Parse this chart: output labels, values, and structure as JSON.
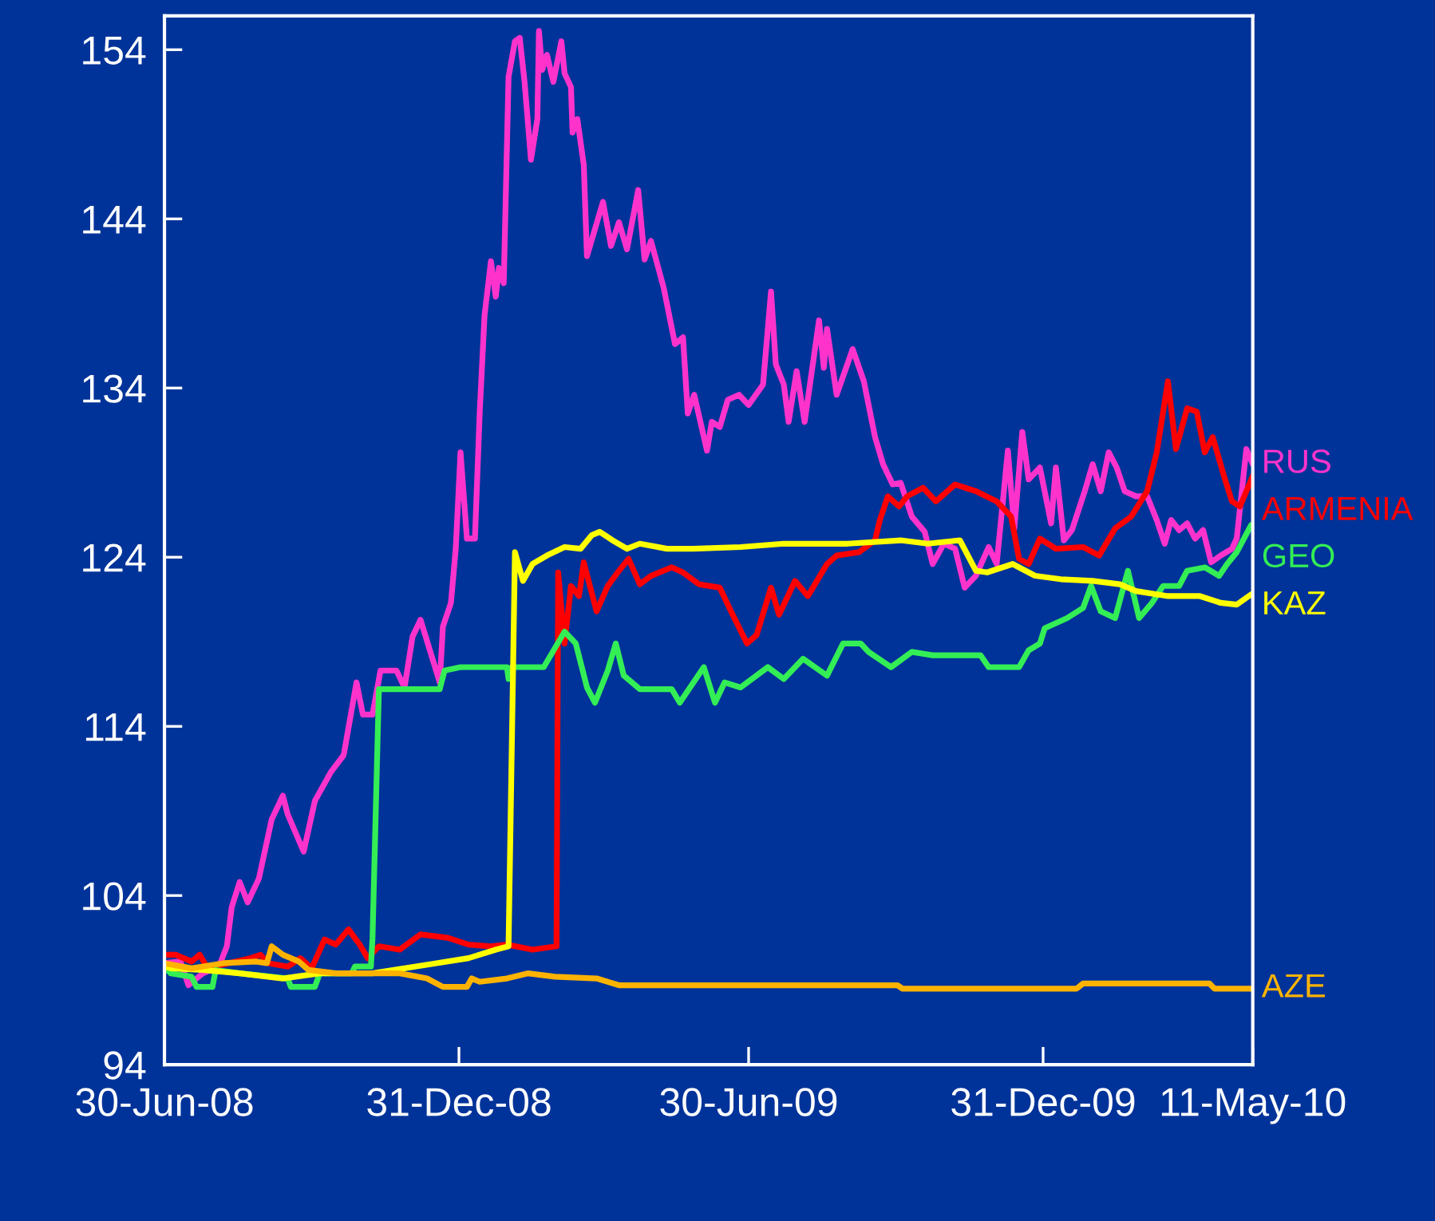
{
  "chart_data": {
    "type": "line",
    "xlim": [
      "2008-06-30",
      "2010-05-11"
    ],
    "xticks": [
      {
        "value": "2008-06-30",
        "label": "30-Jun-08"
      },
      {
        "value": "2008-12-31",
        "label": "31-Dec-08"
      },
      {
        "value": "2009-06-30",
        "label": "30-Jun-09"
      },
      {
        "value": "2009-12-31",
        "label": "31-Dec-09"
      },
      {
        "value": "2010-05-11",
        "label": "11-May-10"
      }
    ],
    "ylim": [
      94,
      156
    ],
    "yticks": [
      94,
      104,
      114,
      124,
      134,
      144,
      154
    ],
    "grid": false,
    "legend": false,
    "marker": "none",
    "line_style": "solid",
    "series": [
      {
        "name": "RUS",
        "color": "#ff33cc",
        "x": [
          "2008-06-30",
          "2008-07-10",
          "2008-07-15",
          "2008-07-24",
          "2008-08-03",
          "2008-08-08",
          "2008-08-11",
          "2008-08-16",
          "2008-08-21",
          "2008-08-28",
          "2008-09-05",
          "2008-09-12",
          "2008-09-15",
          "2008-09-25",
          "2008-10-02",
          "2008-10-12",
          "2008-10-20",
          "2008-10-28",
          "2008-11-01",
          "2008-11-07",
          "2008-11-12",
          "2008-11-22",
          "2008-11-27",
          "2008-12-02",
          "2008-12-07",
          "2008-12-19",
          "2008-12-21",
          "2008-12-26",
          "2008-12-29",
          "2009-01-01",
          "2009-01-05",
          "2009-01-10",
          "2009-01-13",
          "2009-01-16",
          "2009-01-20",
          "2009-01-23",
          "2009-01-25",
          "2009-01-28",
          "2009-01-31",
          "2009-02-04",
          "2009-02-07",
          "2009-02-10",
          "2009-02-14",
          "2009-02-18",
          "2009-02-19",
          "2009-02-21",
          "2009-02-24",
          "2009-02-28",
          "2009-03-05",
          "2009-03-07",
          "2009-03-11",
          "2009-03-12",
          "2009-03-15",
          "2009-03-19",
          "2009-03-21",
          "2009-03-26",
          "2009-03-31",
          "2009-04-05",
          "2009-04-10",
          "2009-04-15",
          "2009-04-22",
          "2009-04-26",
          "2009-04-30",
          "2009-05-08",
          "2009-05-15",
          "2009-05-20",
          "2009-05-23",
          "2009-05-27",
          "2009-06-04",
          "2009-06-07",
          "2009-06-12",
          "2009-06-17",
          "2009-06-24",
          "2009-06-30",
          "2009-07-09",
          "2009-07-14",
          "2009-07-17",
          "2009-07-22",
          "2009-07-25",
          "2009-07-30",
          "2009-08-04",
          "2009-08-13",
          "2009-08-16",
          "2009-08-18",
          "2009-08-24",
          "2009-09-03",
          "2009-09-10",
          "2009-09-17",
          "2009-09-22",
          "2009-09-28",
          "2009-10-03",
          "2009-10-10",
          "2009-10-18",
          "2009-10-23",
          "2009-10-30",
          "2009-11-06",
          "2009-11-12",
          "2009-11-19",
          "2009-11-27",
          "2009-12-02",
          "2009-12-09",
          "2009-12-13",
          "2009-12-18",
          "2009-12-22",
          "2009-12-29",
          "2010-01-05",
          "2010-01-08",
          "2010-01-13",
          "2010-01-18",
          "2010-01-26",
          "2010-01-31",
          "2010-02-05",
          "2010-02-10",
          "2010-02-15",
          "2010-02-20",
          "2010-02-27",
          "2010-03-06",
          "2010-03-12",
          "2010-03-17",
          "2010-03-21",
          "2010-03-26",
          "2010-03-31",
          "2010-04-05",
          "2010-04-10",
          "2010-04-15",
          "2010-04-21",
          "2010-04-28",
          "2010-05-01",
          "2010-05-07",
          "2010-05-11"
        ],
        "values": [
          100.0,
          100.1,
          98.7,
          99.4,
          99.8,
          101.0,
          103.3,
          104.8,
          103.6,
          105.0,
          108.5,
          109.9,
          108.8,
          106.6,
          109.6,
          111.3,
          112.3,
          116.6,
          114.7,
          114.7,
          117.3,
          117.3,
          116.3,
          119.3,
          120.3,
          116.6,
          119.9,
          121.3,
          124.5,
          130.2,
          125.1,
          125.1,
          132.6,
          138.3,
          141.5,
          139.4,
          141.1,
          140.2,
          152.4,
          154.5,
          154.7,
          152.1,
          147.5,
          149.9,
          155.1,
          152.8,
          153.7,
          152.1,
          154.5,
          152.6,
          151.8,
          149.1,
          149.9,
          147.2,
          141.8,
          143.4,
          145.0,
          142.4,
          143.8,
          142.2,
          145.7,
          141.6,
          142.7,
          139.9,
          136.6,
          137.0,
          132.5,
          133.6,
          130.3,
          132.0,
          131.7,
          133.3,
          133.6,
          133.0,
          134.2,
          139.7,
          135.4,
          134.2,
          132.0,
          135.0,
          132.0,
          138.0,
          135.2,
          137.5,
          133.6,
          136.3,
          134.4,
          131.1,
          129.5,
          128.3,
          128.4,
          126.4,
          125.5,
          123.6,
          124.8,
          124.5,
          122.2,
          122.9,
          124.6,
          123.6,
          130.3,
          125.7,
          131.4,
          128.6,
          129.3,
          126.0,
          129.3,
          125.0,
          125.6,
          127.9,
          129.5,
          127.9,
          130.2,
          129.3,
          127.9,
          127.6,
          127.6,
          126.2,
          124.8,
          126.2,
          125.6,
          126.0,
          125.1,
          125.6,
          123.7,
          124.1,
          124.5,
          125.1,
          130.4,
          129.5
        ]
      },
      {
        "name": "ARMENIA",
        "color": "#ff0000",
        "x": [
          "2008-06-30",
          "2008-07-07",
          "2008-07-17",
          "2008-07-22",
          "2008-07-27",
          "2008-08-09",
          "2008-08-23",
          "2008-08-29",
          "2008-09-03",
          "2008-09-15",
          "2008-09-23",
          "2008-09-30",
          "2008-10-08",
          "2008-10-15",
          "2008-10-23",
          "2008-10-30",
          "2008-11-04",
          "2008-11-11",
          "2008-11-24",
          "2008-12-07",
          "2008-12-24",
          "2009-01-06",
          "2009-01-20",
          "2009-01-30",
          "2009-02-15",
          "2009-03-02",
          "2009-03-03",
          "2009-03-07",
          "2009-03-11",
          "2009-03-16",
          "2009-03-19",
          "2009-03-22",
          "2009-03-27",
          "2009-04-03",
          "2009-04-10",
          "2009-04-16",
          "2009-04-23",
          "2009-04-30",
          "2009-05-13",
          "2009-05-20",
          "2009-05-30",
          "2009-06-12",
          "2009-06-19",
          "2009-06-29",
          "2009-07-05",
          "2009-07-14",
          "2009-07-19",
          "2009-07-29",
          "2009-08-06",
          "2009-08-18",
          "2009-08-24",
          "2009-09-07",
          "2009-09-17",
          "2009-09-20",
          "2009-09-25",
          "2009-10-02",
          "2009-10-07",
          "2009-10-17",
          "2009-10-25",
          "2009-11-06",
          "2009-11-19",
          "2009-12-02",
          "2009-12-11",
          "2009-12-16",
          "2009-12-22",
          "2009-12-29",
          "2010-01-08",
          "2010-01-25",
          "2010-02-04",
          "2010-02-14",
          "2010-02-24",
          "2010-03-06",
          "2010-03-12",
          "2010-03-19",
          "2010-03-24",
          "2010-03-31",
          "2010-04-06",
          "2010-04-11",
          "2010-04-16",
          "2010-04-23",
          "2010-04-28",
          "2010-05-03",
          "2010-05-11"
        ],
        "values": [
          100.5,
          100.5,
          100.1,
          100.5,
          99.7,
          100.0,
          100.3,
          100.5,
          100.0,
          99.8,
          100.3,
          99.7,
          101.4,
          101.1,
          102.0,
          101.1,
          100.3,
          101.0,
          100.8,
          101.7,
          101.5,
          101.1,
          101.0,
          101.1,
          100.8,
          101.0,
          123.1,
          118.9,
          122.3,
          121.7,
          123.7,
          122.6,
          120.8,
          122.3,
          123.2,
          123.9,
          122.4,
          122.9,
          123.4,
          123.1,
          122.4,
          122.2,
          120.8,
          118.9,
          119.4,
          122.2,
          120.6,
          122.6,
          121.7,
          123.6,
          124.1,
          124.3,
          125.0,
          126.2,
          127.6,
          127.0,
          127.6,
          128.1,
          127.3,
          128.3,
          127.9,
          127.3,
          126.4,
          123.9,
          123.6,
          125.1,
          124.5,
          124.6,
          124.1,
          125.7,
          126.4,
          127.9,
          130.2,
          134.4,
          130.4,
          132.8,
          132.6,
          130.2,
          131.1,
          128.8,
          127.3,
          127.0,
          128.8
        ]
      },
      {
        "name": "GEO",
        "color": "#33ee55",
        "x": [
          "2008-06-30",
          "2008-07-04",
          "2008-07-17",
          "2008-07-20",
          "2008-07-30",
          "2008-08-01",
          "2008-08-16",
          "2008-09-15",
          "2008-09-17",
          "2008-10-02",
          "2008-10-05",
          "2008-10-25",
          "2008-10-27",
          "2008-11-06",
          "2008-11-07",
          "2008-11-11",
          "2008-12-19",
          "2008-12-22",
          "2009-01-01",
          "2009-01-30",
          "2009-01-31",
          "2009-02-02",
          "2009-02-22",
          "2009-03-07",
          "2009-03-14",
          "2009-03-21",
          "2009-03-26",
          "2009-04-03",
          "2009-04-08",
          "2009-04-13",
          "2009-04-23",
          "2009-05-13",
          "2009-05-18",
          "2009-06-02",
          "2009-06-09",
          "2009-06-15",
          "2009-06-25",
          "2009-07-12",
          "2009-07-22",
          "2009-08-03",
          "2009-08-18",
          "2009-08-28",
          "2009-09-08",
          "2009-09-13",
          "2009-09-27",
          "2009-10-10",
          "2009-10-23",
          "2009-11-22",
          "2009-11-27",
          "2009-12-16",
          "2009-12-22",
          "2009-12-29",
          "2010-01-01",
          "2010-01-15",
          "2010-01-25",
          "2010-01-30",
          "2010-02-05",
          "2010-02-14",
          "2010-02-22",
          "2010-03-01",
          "2010-03-09",
          "2010-03-16",
          "2010-03-26",
          "2010-03-31",
          "2010-04-11",
          "2010-04-20",
          "2010-04-25",
          "2010-05-01",
          "2010-05-10"
        ],
        "values": [
          99.8,
          99.4,
          99.2,
          98.6,
          98.6,
          99.6,
          99.4,
          99.1,
          98.6,
          98.6,
          99.4,
          99.4,
          99.8,
          99.8,
          101.5,
          116.2,
          116.2,
          117.3,
          117.5,
          117.5,
          116.8,
          117.5,
          117.5,
          119.6,
          118.9,
          116.3,
          115.4,
          117.3,
          118.9,
          117.0,
          116.2,
          116.2,
          115.4,
          117.5,
          115.4,
          116.6,
          116.3,
          117.5,
          116.8,
          118.0,
          117.0,
          118.9,
          118.9,
          118.4,
          117.5,
          118.4,
          118.2,
          118.2,
          117.5,
          117.5,
          118.5,
          118.9,
          119.8,
          120.4,
          121.0,
          122.3,
          120.8,
          120.4,
          123.2,
          120.4,
          121.3,
          122.3,
          122.3,
          123.2,
          123.4,
          122.9,
          123.6,
          124.3,
          125.9
        ]
      },
      {
        "name": "KAZ",
        "color": "#ffff00",
        "x": [
          "2008-06-30",
          "2008-07-04",
          "2008-07-24",
          "2008-08-16",
          "2008-09-12",
          "2008-10-05",
          "2008-11-07",
          "2008-11-27",
          "2008-12-17",
          "2009-01-06",
          "2009-01-23",
          "2009-01-31",
          "2009-02-04",
          "2009-02-09",
          "2009-02-15",
          "2009-02-24",
          "2009-03-07",
          "2009-03-17",
          "2009-03-24",
          "2009-03-29",
          "2009-04-06",
          "2009-04-15",
          "2009-04-23",
          "2009-05-10",
          "2009-05-26",
          "2009-06-25",
          "2009-07-22",
          "2009-08-31",
          "2009-10-03",
          "2009-10-20",
          "2009-11-09",
          "2009-11-19",
          "2009-11-26",
          "2009-12-12",
          "2009-12-26",
          "2010-01-11",
          "2010-01-31",
          "2010-02-17",
          "2010-02-27",
          "2010-03-19",
          "2010-04-08",
          "2010-04-21",
          "2010-05-01",
          "2010-05-10"
        ],
        "values": [
          99.8,
          99.7,
          99.6,
          99.4,
          99.1,
          99.4,
          99.4,
          99.7,
          100.0,
          100.3,
          100.8,
          101.0,
          124.3,
          122.6,
          123.6,
          124.1,
          124.6,
          124.5,
          125.3,
          125.5,
          125.0,
          124.5,
          124.8,
          124.5,
          124.5,
          124.6,
          124.8,
          124.8,
          125.0,
          124.8,
          125.0,
          123.2,
          123.1,
          123.6,
          122.9,
          122.7,
          122.6,
          122.4,
          122.0,
          121.7,
          121.7,
          121.3,
          121.2,
          121.8
        ]
      },
      {
        "name": "AZE",
        "color": "#ffb300",
        "x": [
          "2008-06-30",
          "2008-07-17",
          "2008-08-06",
          "2008-08-26",
          "2008-09-02",
          "2008-09-05",
          "2008-09-12",
          "2008-09-22",
          "2008-09-28",
          "2008-10-15",
          "2008-11-24",
          "2008-12-11",
          "2008-12-21",
          "2009-01-05",
          "2009-01-08",
          "2009-01-13",
          "2009-01-30",
          "2009-02-12",
          "2009-03-01",
          "2009-03-27",
          "2009-04-10",
          "2009-10-01",
          "2009-10-04",
          "2010-01-21",
          "2010-01-25",
          "2010-04-14",
          "2010-04-17",
          "2010-05-11"
        ],
        "values": [
          100.0,
          99.7,
          100.0,
          100.1,
          100.0,
          101.0,
          100.5,
          100.1,
          99.6,
          99.4,
          99.4,
          99.1,
          98.6,
          98.6,
          99.1,
          98.9,
          99.1,
          99.4,
          99.2,
          99.1,
          98.7,
          98.7,
          98.5,
          98.5,
          98.8,
          98.8,
          98.5,
          98.5
        ]
      }
    ]
  }
}
